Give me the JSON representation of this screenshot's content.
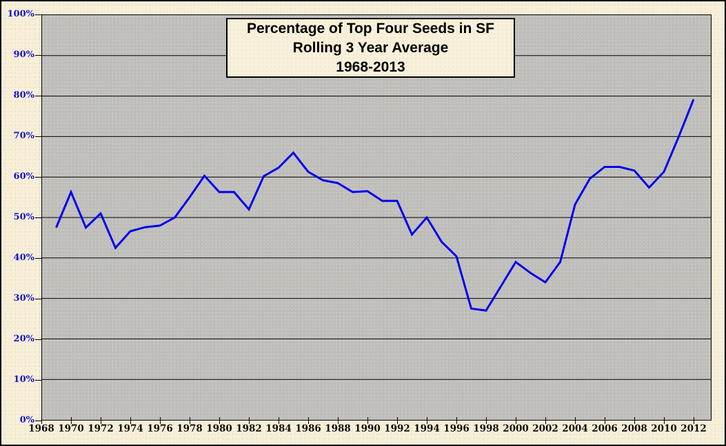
{
  "title": {
    "line1": "Percentage of Top Four Seeds in SF",
    "line2": "Rolling 3 Year Average",
    "line3": "1968-2013"
  },
  "chart_data": {
    "type": "line",
    "title": "Percentage of Top Four Seeds in SF — Rolling 3 Year Average — 1968-2013",
    "xlabel": "",
    "ylabel": "",
    "x": [
      1969,
      1970,
      1971,
      1972,
      1973,
      1974,
      1975,
      1976,
      1977,
      1978,
      1979,
      1980,
      1981,
      1982,
      1983,
      1984,
      1985,
      1986,
      1987,
      1988,
      1989,
      1990,
      1991,
      1992,
      1993,
      1994,
      1995,
      1996,
      1997,
      1998,
      1999,
      2000,
      2001,
      2002,
      2003,
      2004,
      2005,
      2006,
      2007,
      2008,
      2009,
      2010,
      2011,
      2012
    ],
    "values": [
      47.5,
      56.3,
      47.5,
      51,
      42.5,
      46.6,
      47.6,
      48,
      50,
      55,
      60.3,
      56.3,
      56.3,
      52,
      60.2,
      62.3,
      66,
      61.3,
      59.2,
      58.5,
      56.3,
      56.5,
      54.1,
      54.1,
      45.8,
      50,
      44,
      40.4,
      27.5,
      27,
      33,
      39,
      36.3,
      34,
      39,
      53.2,
      59.6,
      62.5,
      62.5,
      61.6,
      57.4,
      61.3,
      70,
      79.2
    ],
    "x_tick_labels": [
      "1968",
      "1970",
      "1972",
      "1974",
      "1976",
      "1978",
      "1980",
      "1982",
      "1984",
      "1986",
      "1988",
      "1990",
      "1992",
      "1994",
      "1996",
      "1998",
      "2000",
      "2002",
      "2004",
      "2006",
      "2008",
      "2010",
      "2012"
    ],
    "y_tick_labels": [
      "100%",
      "90%",
      "80%",
      "70%",
      "60%",
      "50%",
      "40%",
      "30%",
      "20%",
      "10%",
      "0%"
    ],
    "xlim": [
      1968,
      2013.2
    ],
    "ylim": [
      0,
      100
    ],
    "grid": true,
    "legend": "none",
    "line_color": "#0000ee",
    "gridline_color": "#000000",
    "plot_bg_color": "#bdbdbd",
    "page_bg_color": "#f6edd5",
    "y_label_color": "#1414cc",
    "x_label_color": "#0d0d0d"
  }
}
